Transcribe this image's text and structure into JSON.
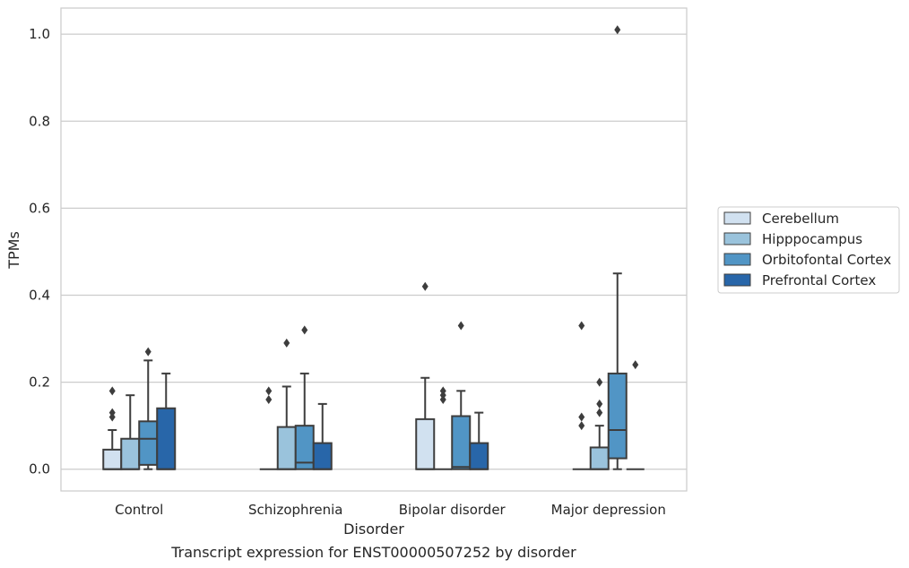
{
  "chart_data": {
    "type": "box",
    "caption": "Transcript expression for ENST00000507252 by disorder",
    "xlabel": "Disorder",
    "ylabel": "TPMs",
    "ylim": [
      -0.05,
      1.06
    ],
    "yticks": [
      0.0,
      0.2,
      0.4,
      0.6,
      0.8,
      1.0
    ],
    "ytick_labels": [
      "0.0",
      "0.2",
      "0.4",
      "0.6",
      "0.8",
      "1.0"
    ],
    "grid": "horizontal",
    "legend_position": "right",
    "categories": [
      "Control",
      "Schizophrenia",
      "Bipolar disorder",
      "Major depression"
    ],
    "series": [
      {
        "name": "Cerebellum",
        "color": "#d1e1f0",
        "boxes": [
          {
            "whislo": 0.0,
            "q1": 0.0,
            "med": 0.0,
            "q3": 0.045,
            "whishi": 0.09,
            "fliers": [
              0.12,
              0.13,
              0.18
            ]
          },
          {
            "whislo": 0.0,
            "q1": 0.0,
            "med": 0.0,
            "q3": 0.0,
            "whishi": 0.0,
            "fliers": [
              0.16,
              0.18
            ]
          },
          {
            "whislo": 0.0,
            "q1": 0.0,
            "med": 0.0,
            "q3": 0.115,
            "whishi": 0.21,
            "fliers": [
              0.42
            ]
          },
          {
            "whislo": 0.0,
            "q1": 0.0,
            "med": 0.0,
            "q3": 0.0,
            "whishi": 0.0,
            "fliers": [
              0.1,
              0.12,
              0.33
            ]
          }
        ]
      },
      {
        "name": "Hipppocampus",
        "color": "#9ac3dc",
        "boxes": [
          {
            "whislo": 0.0,
            "q1": 0.0,
            "med": 0.0,
            "q3": 0.07,
            "whishi": 0.17,
            "fliers": []
          },
          {
            "whislo": 0.0,
            "q1": 0.0,
            "med": 0.0,
            "q3": 0.097,
            "whishi": 0.19,
            "fliers": [
              0.29
            ]
          },
          {
            "whislo": 0.0,
            "q1": 0.0,
            "med": 0.0,
            "q3": 0.0,
            "whishi": 0.0,
            "fliers": [
              0.16,
              0.17,
              0.18
            ]
          },
          {
            "whislo": 0.0,
            "q1": 0.0,
            "med": 0.0,
            "q3": 0.05,
            "whishi": 0.1,
            "fliers": [
              0.13,
              0.15,
              0.2
            ]
          }
        ]
      },
      {
        "name": "Orbitofontal Cortex",
        "color": "#5195c5",
        "boxes": [
          {
            "whislo": 0.0,
            "q1": 0.01,
            "med": 0.07,
            "q3": 0.11,
            "whishi": 0.25,
            "fliers": [
              0.27
            ]
          },
          {
            "whislo": 0.0,
            "q1": 0.0,
            "med": 0.015,
            "q3": 0.1,
            "whishi": 0.22,
            "fliers": [
              0.32
            ]
          },
          {
            "whislo": 0.0,
            "q1": 0.0,
            "med": 0.005,
            "q3": 0.122,
            "whishi": 0.18,
            "fliers": [
              0.33
            ]
          },
          {
            "whislo": 0.0,
            "q1": 0.025,
            "med": 0.09,
            "q3": 0.22,
            "whishi": 0.45,
            "fliers": [
              1.01
            ]
          }
        ]
      },
      {
        "name": "Prefrontal Cortex",
        "color": "#2866a9",
        "boxes": [
          {
            "whislo": 0.0,
            "q1": 0.0,
            "med": 0.0,
            "q3": 0.14,
            "whishi": 0.22,
            "fliers": []
          },
          {
            "whislo": 0.0,
            "q1": 0.0,
            "med": 0.0,
            "q3": 0.06,
            "whishi": 0.15,
            "fliers": []
          },
          {
            "whislo": 0.0,
            "q1": 0.0,
            "med": 0.0,
            "q3": 0.06,
            "whishi": 0.13,
            "fliers": []
          },
          {
            "whislo": 0.0,
            "q1": 0.0,
            "med": 0.0,
            "q3": 0.0,
            "whishi": 0.0,
            "fliers": [
              0.24
            ]
          }
        ]
      }
    ]
  }
}
